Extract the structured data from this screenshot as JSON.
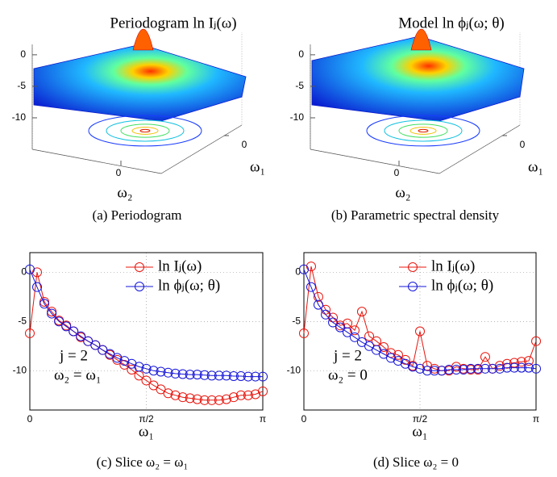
{
  "chart_data": [
    {
      "type": "surface",
      "title": "Periodogram ln Iⱼ(ω)",
      "caption": "(a) Periodogram",
      "xlabel": "ω₂",
      "ylabel": "ω₁",
      "xticks": [
        0
      ],
      "yticks": [
        0
      ],
      "zlim": [
        -13,
        8
      ],
      "zticks": [
        0,
        -5,
        -10
      ]
    },
    {
      "type": "surface",
      "title": "Model ln ϕⱼ(ω; θ)",
      "caption": "(b) Parametric spectral density",
      "xlabel": "ω₂",
      "ylabel": "ω₁",
      "xticks": [
        0
      ],
      "yticks": [
        0
      ],
      "zlim": [
        -13,
        8
      ],
      "zticks": [
        0,
        -5,
        -10
      ]
    },
    {
      "type": "line",
      "caption": "(c) Slice ω₂ = ω₁",
      "xlabel": "ω₁",
      "annotations": [
        "j = 2",
        "ω₂ = ω₁"
      ],
      "grid": true,
      "legend": "top-right",
      "xlim": [
        0,
        3.1416
      ],
      "xticks": [
        0,
        {
          "value": 1.5708,
          "label": "π/2"
        },
        {
          "value": 3.1416,
          "label": "π"
        }
      ],
      "ylim": [
        -14,
        2
      ],
      "yticks": [
        0,
        -5,
        -10
      ],
      "x": [
        0,
        0.098,
        0.196,
        0.295,
        0.393,
        0.491,
        0.589,
        0.687,
        0.785,
        0.884,
        0.982,
        1.08,
        1.178,
        1.276,
        1.374,
        1.473,
        1.571,
        1.669,
        1.767,
        1.865,
        1.963,
        2.062,
        2.16,
        2.258,
        2.356,
        2.454,
        2.553,
        2.651,
        2.749,
        2.847,
        2.945,
        3.043,
        3.142
      ],
      "series": [
        {
          "name": "ln Iⱼ(ω)",
          "color": "#e8140c",
          "values": [
            -6.2,
            0.0,
            -3.0,
            -4.0,
            -4.9,
            -5.4,
            -6.0,
            -6.6,
            -7.0,
            -7.4,
            -7.9,
            -8.4,
            -8.9,
            -9.4,
            -9.9,
            -10.5,
            -11.0,
            -11.5,
            -11.9,
            -12.3,
            -12.5,
            -12.7,
            -12.8,
            -12.9,
            -13.0,
            -13.0,
            -13.0,
            -12.9,
            -12.7,
            -12.5,
            -12.5,
            -12.4,
            -12.1
          ]
        },
        {
          "name": "ln ϕⱼ(ω; θ)",
          "color": "#1414d8",
          "values": [
            0.3,
            -1.5,
            -3.2,
            -4.2,
            -5.0,
            -5.5,
            -6.0,
            -6.5,
            -7.0,
            -7.4,
            -7.9,
            -8.3,
            -8.7,
            -9.0,
            -9.3,
            -9.6,
            -9.8,
            -10.0,
            -10.1,
            -10.2,
            -10.3,
            -10.35,
            -10.4,
            -10.4,
            -10.45,
            -10.5,
            -10.5,
            -10.5,
            -10.55,
            -10.55,
            -10.6,
            -10.6,
            -10.6
          ]
        }
      ]
    },
    {
      "type": "line",
      "caption": "(d) Slice ω₂ = 0",
      "xlabel": "ω₁",
      "annotations": [
        "j = 2",
        "ω₂ = 0"
      ],
      "grid": true,
      "legend": "top-right",
      "xlim": [
        0,
        3.1416
      ],
      "xticks": [
        0,
        {
          "value": 1.5708,
          "label": "π/2"
        },
        {
          "value": 3.1416,
          "label": "π"
        }
      ],
      "ylim": [
        -14,
        2
      ],
      "yticks": [
        0,
        -5,
        -10
      ],
      "x": [
        0,
        0.098,
        0.196,
        0.295,
        0.393,
        0.491,
        0.589,
        0.687,
        0.785,
        0.884,
        0.982,
        1.08,
        1.178,
        1.276,
        1.374,
        1.473,
        1.571,
        1.669,
        1.767,
        1.865,
        1.963,
        2.062,
        2.16,
        2.258,
        2.356,
        2.454,
        2.553,
        2.651,
        2.749,
        2.847,
        2.945,
        3.043,
        3.142
      ],
      "series": [
        {
          "name": "ln Iⱼ(ω)",
          "color": "#e8140c",
          "values": [
            -6.2,
            0.6,
            -2.5,
            -3.8,
            -4.6,
            -5.4,
            -5.2,
            -5.9,
            -4.0,
            -6.5,
            -7.0,
            -7.6,
            -8.2,
            -8.4,
            -8.9,
            -9.5,
            -6.0,
            -9.5,
            -9.8,
            -10.0,
            -10.0,
            -9.6,
            -9.8,
            -9.9,
            -9.9,
            -8.6,
            -9.8,
            -9.5,
            -9.3,
            -9.2,
            -9.1,
            -9.0,
            -7.0
          ]
        },
        {
          "name": "ln ϕⱼ(ω; θ)",
          "color": "#1414d8",
          "values": [
            0.3,
            -1.5,
            -3.3,
            -4.3,
            -5.1,
            -5.6,
            -6.1,
            -6.6,
            -7.1,
            -7.5,
            -7.9,
            -8.3,
            -8.7,
            -9.0,
            -9.3,
            -9.6,
            -9.8,
            -10.0,
            -10.0,
            -10.0,
            -9.9,
            -9.9,
            -9.9,
            -9.8,
            -9.8,
            -9.8,
            -9.8,
            -9.8,
            -9.7,
            -9.7,
            -9.7,
            -9.7,
            -9.8
          ]
        }
      ]
    }
  ]
}
